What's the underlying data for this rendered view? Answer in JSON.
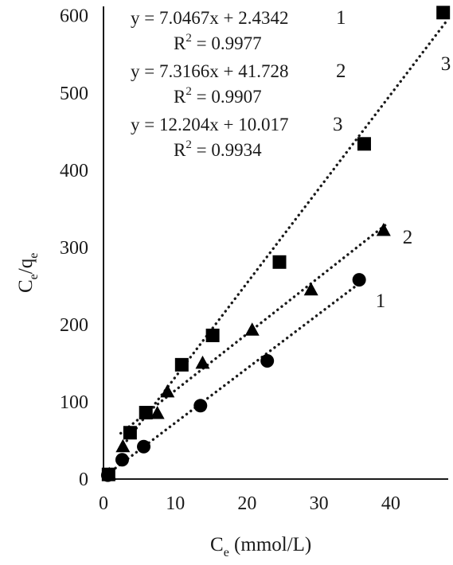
{
  "chart_data": {
    "type": "scatter",
    "title": "",
    "xlabel": {
      "base": "C",
      "sub": "e",
      "rest": " (mmol/L)"
    },
    "ylabel": {
      "base1": "C",
      "sub1": "e",
      "mid": "/q",
      "sub2": "e"
    },
    "xlim": [
      0,
      48
    ],
    "ylim": [
      0,
      610
    ],
    "xticks": [
      "0",
      "10",
      "20",
      "30",
      "40"
    ],
    "yticks": [
      "0",
      "100",
      "200",
      "300",
      "400",
      "500",
      "600"
    ],
    "grid": false,
    "series": [
      {
        "id": "1",
        "marker": "circle",
        "label": "1",
        "points": [
          [
            0.6,
            5
          ],
          [
            2.6,
            25
          ],
          [
            5.6,
            42
          ],
          [
            13.5,
            95
          ],
          [
            22.8,
            153
          ],
          [
            35.6,
            258
          ]
        ],
        "fit": {
          "slope": 7.0467,
          "intercept": 2.4342,
          "x0": 0.5,
          "x1": 36.5
        },
        "equation": "y = 7.0467x + 2.4342",
        "r2_prefix": "R",
        "r2_value": " = 0.9977",
        "eq_label": "1"
      },
      {
        "id": "2",
        "marker": "triangle",
        "label": "2",
        "points": [
          [
            0.8,
            6
          ],
          [
            2.7,
            42
          ],
          [
            7.5,
            85
          ],
          [
            8.9,
            113
          ],
          [
            13.8,
            150
          ],
          [
            20.7,
            193
          ],
          [
            28.9,
            245
          ],
          [
            39.0,
            322
          ]
        ],
        "fit": {
          "slope": 7.3166,
          "intercept": 41.728,
          "x0": 2.4,
          "x1": 39.5
        },
        "equation": "y = 7.3166x + 41.728",
        "r2_prefix": "R",
        "r2_value": " = 0.9907",
        "eq_label": "2"
      },
      {
        "id": "3",
        "marker": "square",
        "label": "3",
        "points": [
          [
            0.7,
            6
          ],
          [
            3.7,
            60
          ],
          [
            5.9,
            86
          ],
          [
            10.9,
            148
          ],
          [
            15.2,
            186
          ],
          [
            24.5,
            281
          ],
          [
            36.3,
            434
          ],
          [
            47.3,
            604
          ]
        ],
        "fit": {
          "slope": 12.204,
          "intercept": 10.017,
          "x0": 2.8,
          "x1": 47.6
        },
        "equation": "y = 12.204x + 10.017",
        "r2_prefix": "R",
        "r2_value": " = 0.9934",
        "eq_label": "3"
      }
    ]
  }
}
